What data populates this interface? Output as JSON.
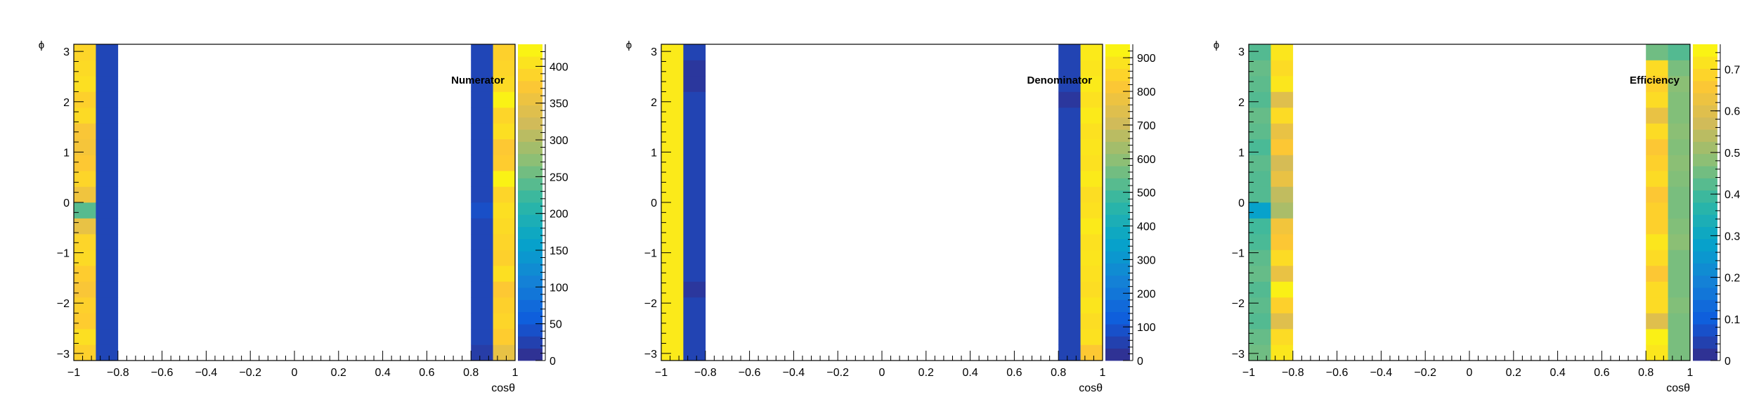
{
  "chart_data": [
    {
      "type": "heatmap",
      "title": "Numerator",
      "xlabel": "cosθ",
      "ylabel": "ϕ",
      "xlim": [
        -1,
        1
      ],
      "ylim": [
        -3.1416,
        3.1416
      ],
      "x_ticks": [
        "−1",
        "−0.8",
        "−0.6",
        "−0.4",
        "−0.2",
        "0",
        "0.2",
        "0.4",
        "0.6",
        "0.8",
        "1"
      ],
      "y_ticks": [
        "−3",
        "−2",
        "−1",
        "0",
        "1",
        "2",
        "3"
      ],
      "z_range": [
        0,
        430
      ],
      "z_ticks": [
        "0",
        "50",
        "100",
        "150",
        "200",
        "250",
        "300",
        "350",
        "400"
      ],
      "x_bin_edges": [
        -1.0,
        -0.9,
        -0.8,
        0.8,
        0.9,
        1.0
      ],
      "phi_bins": 20,
      "columns": [
        {
          "x_range": [
            -1.0,
            -0.9
          ],
          "values": [
            385,
            400,
            380,
            385,
            370,
            380,
            395,
            390,
            350,
            240,
            360,
            390,
            375,
            365,
            370,
            395,
            385,
            400,
            395,
            390
          ]
        },
        {
          "x_range": [
            -0.9,
            -0.8
          ],
          "values": [
            30,
            30,
            30,
            30,
            30,
            30,
            30,
            30,
            30,
            30,
            30,
            30,
            30,
            30,
            30,
            30,
            30,
            30,
            30,
            30
          ]
        },
        {
          "x_range": [
            0.8,
            0.9
          ],
          "values": [
            20,
            30,
            30,
            30,
            30,
            30,
            30,
            30,
            30,
            40,
            30,
            30,
            30,
            30,
            30,
            30,
            30,
            30,
            30,
            30
          ]
        },
        {
          "x_range": [
            0.9,
            1.0
          ],
          "values": [
            350,
            380,
            390,
            385,
            375,
            400,
            385,
            390,
            395,
            400,
            390,
            420,
            380,
            375,
            400,
            390,
            420,
            395,
            390,
            385
          ]
        }
      ]
    },
    {
      "type": "heatmap",
      "title": "Denominator",
      "xlabel": "cosθ",
      "ylabel": "ϕ",
      "xlim": [
        -1,
        1
      ],
      "ylim": [
        -3.1416,
        3.1416
      ],
      "x_ticks": [
        "−1",
        "−0.8",
        "−0.6",
        "−0.4",
        "−0.2",
        "0",
        "0.2",
        "0.4",
        "0.6",
        "0.8",
        "1"
      ],
      "y_ticks": [
        "−3",
        "−2",
        "−1",
        "0",
        "1",
        "2",
        "3"
      ],
      "z_range": [
        0,
        940
      ],
      "z_ticks": [
        "0",
        "100",
        "200",
        "300",
        "400",
        "500",
        "600",
        "700",
        "800",
        "900"
      ],
      "x_bin_edges": [
        -1.0,
        -0.9,
        -0.8,
        0.8,
        0.9,
        1.0
      ],
      "phi_bins": 20,
      "columns": [
        {
          "x_range": [
            -1.0,
            -0.9
          ],
          "values": [
            900,
            900,
            900,
            900,
            900,
            900,
            900,
            900,
            900,
            900,
            900,
            900,
            900,
            900,
            900,
            900,
            900,
            900,
            900,
            900
          ]
        },
        {
          "x_range": [
            -0.9,
            -0.8
          ],
          "values": [
            60,
            60,
            60,
            60,
            30,
            60,
            60,
            60,
            60,
            60,
            60,
            60,
            60,
            60,
            60,
            60,
            60,
            30,
            30,
            60
          ]
        },
        {
          "x_range": [
            0.8,
            0.9
          ],
          "values": [
            60,
            60,
            60,
            60,
            60,
            60,
            60,
            60,
            60,
            60,
            60,
            60,
            60,
            60,
            60,
            60,
            30,
            60,
            60,
            60
          ]
        },
        {
          "x_range": [
            0.9,
            1.0
          ],
          "values": [
            820,
            880,
            870,
            890,
            870,
            880,
            890,
            880,
            900,
            880,
            870,
            900,
            880,
            890,
            880,
            900,
            880,
            900,
            890,
            900
          ]
        }
      ]
    },
    {
      "type": "heatmap",
      "title": "Efficiency",
      "xlabel": "cosθ",
      "ylabel": "ϕ",
      "xlim": [
        -1,
        1
      ],
      "ylim": [
        -3.1416,
        3.1416
      ],
      "x_ticks": [
        "−1",
        "−0.8",
        "−0.6",
        "−0.4",
        "−0.2",
        "0",
        "0.2",
        "0.4",
        "0.6",
        "0.8",
        "1"
      ],
      "y_ticks": [
        "−3",
        "−2",
        "−1",
        "0",
        "1",
        "2",
        "3"
      ],
      "z_range": [
        0,
        0.76
      ],
      "z_ticks": [
        "0",
        "0.1",
        "0.2",
        "0.3",
        "0.4",
        "0.5",
        "0.6",
        "0.7"
      ],
      "x_bin_edges": [
        -1.0,
        -0.9,
        -0.8,
        0.8,
        0.9,
        1.0
      ],
      "phi_bins": 20,
      "columns": [
        {
          "x_range": [
            -1.0,
            -0.9
          ],
          "values": [
            0.45,
            0.44,
            0.42,
            0.43,
            0.42,
            0.44,
            0.43,
            0.41,
            0.4,
            0.28,
            0.42,
            0.42,
            0.43,
            0.41,
            0.43,
            0.44,
            0.42,
            0.43,
            0.44,
            0.42
          ]
        },
        {
          "x_range": [
            -0.9,
            -0.8
          ],
          "values": [
            0.72,
            0.7,
            0.6,
            0.68,
            0.74,
            0.62,
            0.7,
            0.66,
            0.64,
            0.52,
            0.55,
            0.62,
            0.58,
            0.66,
            0.62,
            0.7,
            0.6,
            0.72,
            0.7,
            0.72
          ]
        },
        {
          "x_range": [
            0.8,
            0.9
          ],
          "values": [
            0.72,
            0.74,
            0.6,
            0.7,
            0.7,
            0.66,
            0.7,
            0.72,
            0.68,
            0.68,
            0.66,
            0.7,
            0.68,
            0.66,
            0.7,
            0.62,
            0.7,
            0.68,
            0.7,
            0.45
          ]
        },
        {
          "x_range": [
            0.9,
            1.0
          ],
          "values": [
            0.46,
            0.46,
            0.46,
            0.47,
            0.46,
            0.46,
            0.46,
            0.48,
            0.47,
            0.46,
            0.46,
            0.47,
            0.48,
            0.47,
            0.48,
            0.47,
            0.47,
            0.48,
            0.46,
            0.42
          ]
        }
      ]
    }
  ],
  "colors": {
    "palette": [
      "#352a87",
      "#0f5cdd",
      "#1481d6",
      "#06a4ca",
      "#2eb7a4",
      "#87bf77",
      "#d1bb59",
      "#fec832",
      "#f9fb0e"
    ],
    "frame": "#000000",
    "background": "#ffffff"
  }
}
